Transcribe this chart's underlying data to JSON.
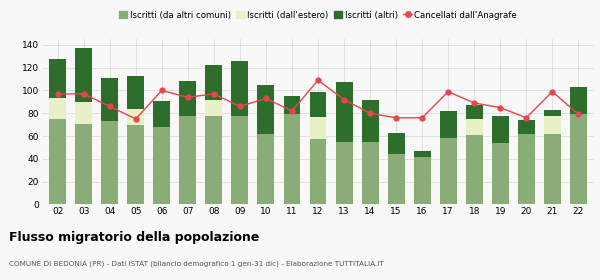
{
  "years": [
    "02",
    "03",
    "04",
    "05",
    "06",
    "07",
    "08",
    "09",
    "10",
    "11",
    "12",
    "13",
    "14",
    "15",
    "16",
    "17",
    "18",
    "19",
    "20",
    "21",
    "22"
  ],
  "iscritti_altri_comuni": [
    75,
    71,
    73,
    70,
    68,
    78,
    78,
    78,
    62,
    79,
    57,
    55,
    55,
    44,
    42,
    58,
    61,
    54,
    62,
    62,
    79
  ],
  "iscritti_estero": [
    18,
    19,
    0,
    14,
    0,
    0,
    14,
    0,
    0,
    0,
    20,
    0,
    0,
    0,
    0,
    0,
    14,
    0,
    0,
    16,
    0
  ],
  "iscritti_altri": [
    35,
    47,
    38,
    29,
    23,
    30,
    30,
    48,
    43,
    16,
    22,
    52,
    37,
    19,
    5,
    24,
    12,
    24,
    12,
    5,
    24
  ],
  "cancellati": [
    97,
    97,
    86,
    75,
    100,
    94,
    97,
    86,
    93,
    82,
    109,
    92,
    80,
    76,
    76,
    99,
    89,
    85,
    76,
    99,
    79
  ],
  "color_altri_comuni": "#8aad78",
  "color_estero": "#e8f0c8",
  "color_altri": "#2d6e2d",
  "color_cancellati": "#e8464a",
  "bg_color": "#f8f8f8",
  "grid_color": "#dddddd",
  "title": "Flusso migratorio della popolazione",
  "subtitle": "COMUNE DI BEDONIA (PR) - Dati ISTAT (bilancio demografico 1 gen-31 dic) - Elaborazione TUTTITALIA.IT",
  "legend_labels": [
    "Iscritti (da altri comuni)",
    "Iscritti (dall'estero)",
    "Iscritti (altri)",
    "Cancellati dall'Anagrafe"
  ],
  "ylim": [
    0,
    145
  ],
  "yticks": [
    0,
    20,
    40,
    60,
    80,
    100,
    120,
    140
  ]
}
